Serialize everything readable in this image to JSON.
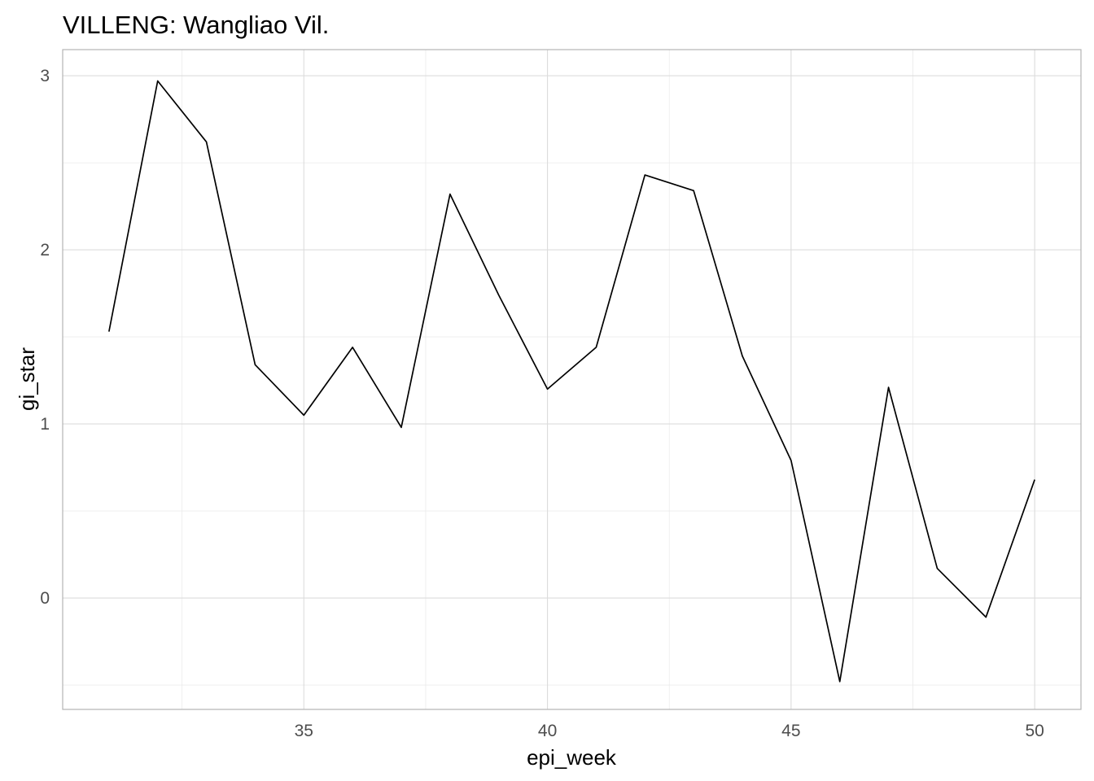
{
  "chart_data": {
    "type": "line",
    "title": "VILLENG: Wangliao Vil.",
    "xlabel": "epi_week",
    "ylabel": "gi_star",
    "xlim": [
      30.05,
      50.95
    ],
    "ylim": [
      -0.64,
      3.15
    ],
    "x_ticks": [
      35,
      40,
      45,
      50
    ],
    "x_tick_labels": [
      "35",
      "40",
      "45",
      "50"
    ],
    "y_ticks": [
      0,
      1,
      2,
      3
    ],
    "y_tick_labels": [
      "0",
      "1",
      "2",
      "3"
    ],
    "x_minor": [
      32.5,
      37.5,
      42.5,
      47.5
    ],
    "y_minor": [
      -0.5,
      0.5,
      1.5,
      2.5
    ],
    "grid": true,
    "x": [
      31,
      32,
      33,
      34,
      35,
      36,
      37,
      38,
      39,
      40,
      41,
      42,
      43,
      44,
      45,
      46,
      47,
      48,
      49,
      50
    ],
    "y": [
      1.53,
      2.97,
      2.62,
      1.34,
      1.05,
      1.44,
      0.98,
      2.32,
      1.74,
      1.2,
      1.44,
      2.43,
      2.34,
      1.39,
      0.79,
      -0.48,
      1.21,
      0.17,
      -0.11,
      0.68
    ],
    "line_color": "#000000"
  }
}
